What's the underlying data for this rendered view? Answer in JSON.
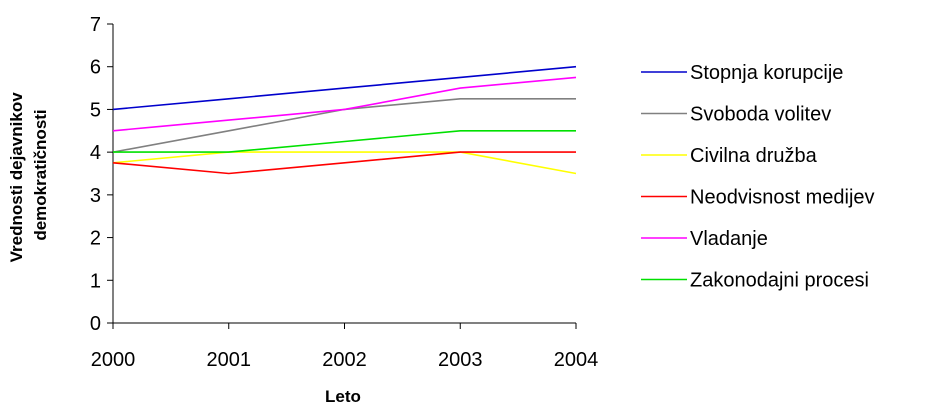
{
  "chart_data": {
    "type": "line",
    "title": "",
    "xlabel": "Leto",
    "ylabel_lines": [
      "Vrednosti dejavnikov",
      "demokratičnosti"
    ],
    "x": [
      2000,
      2001,
      2002,
      2003,
      2004
    ],
    "ylim": [
      0,
      7
    ],
    "yticks": [
      0,
      1,
      2,
      3,
      4,
      5,
      6,
      7
    ],
    "grid": false,
    "legend_position": "right",
    "series": [
      {
        "name": "Stopnja korupcije",
        "color": "#0000CC",
        "values": [
          5.0,
          5.25,
          5.5,
          5.75,
          6.0
        ]
      },
      {
        "name": "Svoboda volitev",
        "color": "#808080",
        "values": [
          4.0,
          4.5,
          5.0,
          5.25,
          5.25
        ]
      },
      {
        "name": "Civilna družba",
        "color": "#FFFF00",
        "values": [
          3.75,
          4.0,
          4.0,
          4.0,
          3.5
        ]
      },
      {
        "name": "Neodvisnost medijev",
        "color": "#FF0000",
        "values": [
          3.75,
          3.5,
          3.75,
          4.0,
          4.0
        ]
      },
      {
        "name": "Vladanje",
        "color": "#FF00FF",
        "values": [
          4.5,
          4.75,
          5.0,
          5.5,
          5.75
        ]
      },
      {
        "name": "Zakonodajni procesi",
        "color": "#00E000",
        "values": [
          4.0,
          4.0,
          4.25,
          4.5,
          4.5
        ]
      }
    ]
  }
}
